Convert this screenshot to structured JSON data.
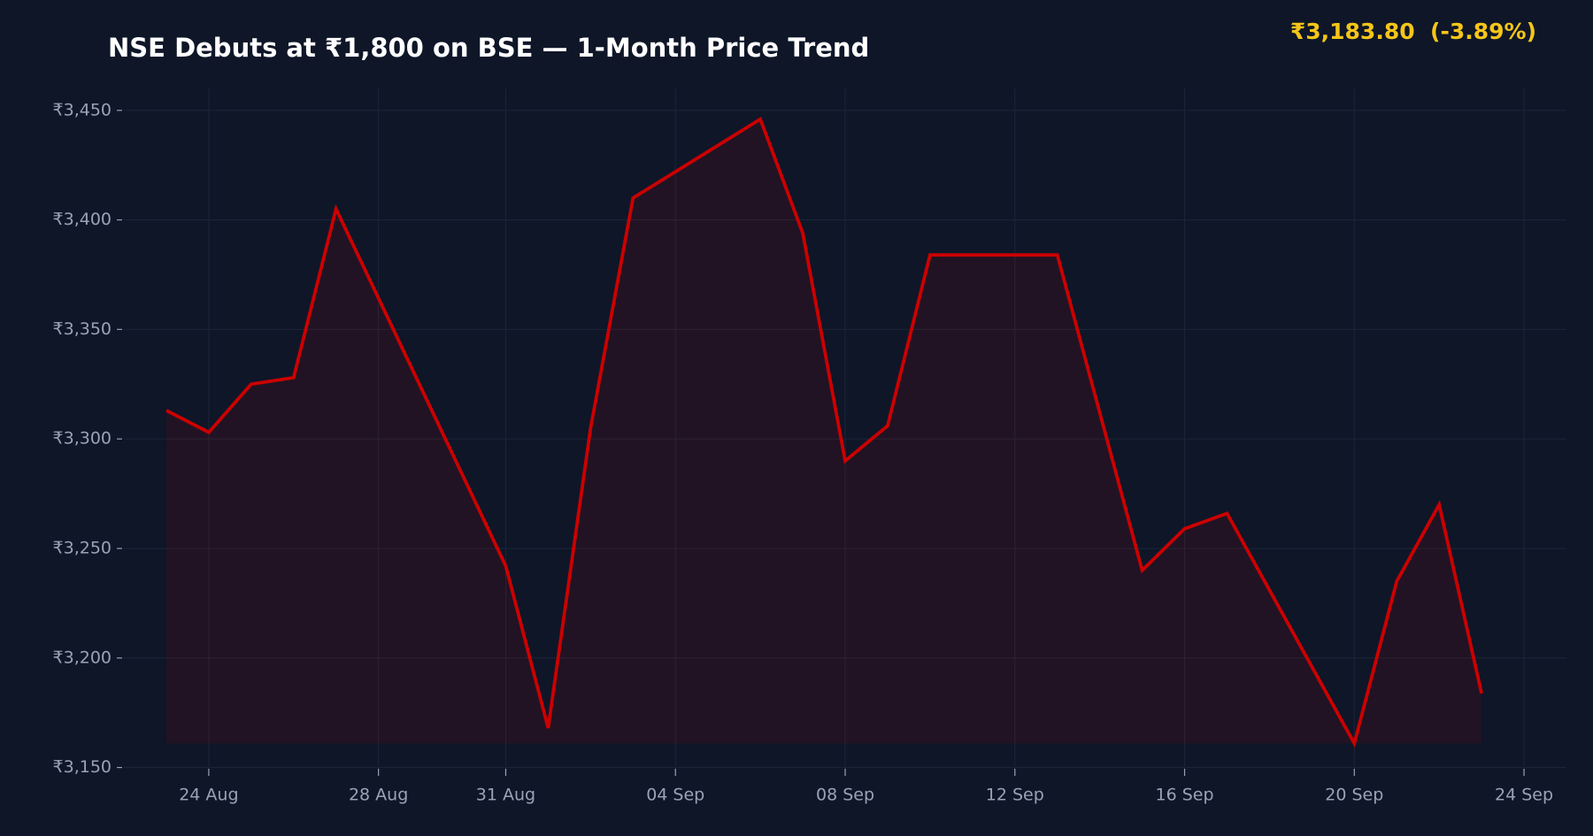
{
  "chart_data": {
    "type": "line",
    "title": "NSE Debuts at ₹1,800 on BSE — 1-Month Price Trend",
    "price_label": "₹3,183.80",
    "change_label": "(-3.89%)",
    "x": [
      "23 Aug",
      "24 Aug",
      "25 Aug",
      "26 Aug",
      "27 Aug",
      "31 Aug",
      "01 Sep",
      "02 Sep",
      "03 Sep",
      "06 Sep",
      "07 Sep",
      "08 Sep",
      "09 Sep",
      "10 Sep",
      "13 Sep",
      "15 Sep",
      "16 Sep",
      "17 Sep",
      "20 Sep",
      "21 Sep",
      "22 Sep",
      "23 Sep"
    ],
    "series": [
      {
        "name": "Price",
        "color": "#cc0000",
        "values": [
          3313,
          3303,
          3325,
          3328,
          3405,
          3242,
          3168,
          3305,
          3410,
          3446,
          3394,
          3290,
          3306,
          3384,
          3384,
          3240,
          3259,
          3266,
          3161,
          3235,
          3270,
          3183.8
        ]
      }
    ],
    "xlim": [
      "22 Aug",
      "25 Sep"
    ],
    "xticks": [
      "24 Aug",
      "28 Aug",
      "31 Aug",
      "04 Sep",
      "08 Sep",
      "12 Sep",
      "16 Sep",
      "20 Sep",
      "24 Sep"
    ],
    "ylim": [
      3147,
      3460
    ],
    "yticks": [
      {
        "value": 3150,
        "label": "₹3,150"
      },
      {
        "value": 3200,
        "label": "₹3,200"
      },
      {
        "value": 3250,
        "label": "₹3,250"
      },
      {
        "value": 3300,
        "label": "₹3,300"
      },
      {
        "value": 3350,
        "label": "₹3,350"
      },
      {
        "value": 3400,
        "label": "₹3,400"
      },
      {
        "value": 3450,
        "label": "₹3,450"
      }
    ],
    "grid": true,
    "area_fill": true
  }
}
